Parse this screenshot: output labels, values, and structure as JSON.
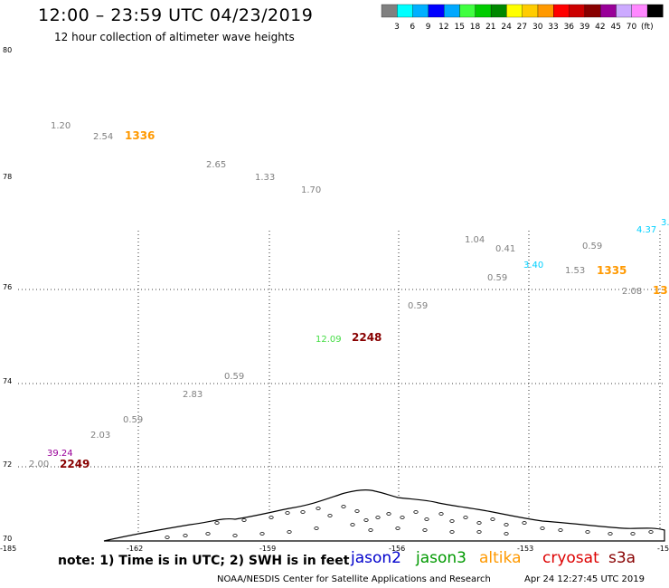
{
  "header": {
    "title": "12:00 – 23:59 UTC 04/23/2019",
    "subtitle": "12 hour collection of altimeter wave heights"
  },
  "legend": {
    "colors": [
      "#808080",
      "#00ffff",
      "#00b0ff",
      "#0000ff",
      "#00a8ff",
      "#40ff40",
      "#00cc00",
      "#008800",
      "#ffff00",
      "#ffcc00",
      "#ff9900",
      "#ff0000",
      "#cc0000",
      "#880000",
      "#990099",
      "#ccaaff",
      "#ff88ff",
      "#000000"
    ],
    "labels": [
      "3",
      "6",
      "9",
      "12",
      "15",
      "18",
      "21",
      "24",
      "27",
      "30",
      "33",
      "36",
      "39",
      "42",
      "45",
      "70",
      "(ft)"
    ]
  },
  "axes": {
    "lat_labels": [
      "80",
      "78",
      "76",
      "74",
      "72",
      "70"
    ],
    "lon_labels": [
      "-185",
      "-162",
      "-159",
      "-156",
      "-153",
      "-15"
    ]
  },
  "observations": [
    {
      "text": "1.20",
      "color": "#808080"
    },
    {
      "text": "2.54",
      "color": "#808080"
    },
    {
      "text": "1336",
      "color": "#ff9900",
      "bold": true
    },
    {
      "text": "2.65",
      "color": "#808080"
    },
    {
      "text": "1.33",
      "color": "#808080"
    },
    {
      "text": "1.70",
      "color": "#808080"
    },
    {
      "text": "1.04",
      "color": "#808080"
    },
    {
      "text": "0.41",
      "color": "#808080"
    },
    {
      "text": "0.59",
      "color": "#808080"
    },
    {
      "text": "4.37",
      "color": "#00d0ff"
    },
    {
      "text": "3.",
      "color": "#00d0ff"
    },
    {
      "text": "3.40",
      "color": "#00d0ff"
    },
    {
      "text": "0.59",
      "color": "#808080"
    },
    {
      "text": "1.53",
      "color": "#808080"
    },
    {
      "text": "1335",
      "color": "#ff9900",
      "bold": true
    },
    {
      "text": "2.08",
      "color": "#808080"
    },
    {
      "text": "13",
      "color": "#ff9900",
      "bold": true
    },
    {
      "text": "0.59",
      "color": "#808080"
    },
    {
      "text": "12.09",
      "color": "#44dd44"
    },
    {
      "text": "2248",
      "color": "#880000",
      "bold": true
    },
    {
      "text": "0.59",
      "color": "#808080"
    },
    {
      "text": "2.83",
      "color": "#808080"
    },
    {
      "text": "0.59",
      "color": "#808080"
    },
    {
      "text": "2.03",
      "color": "#808080"
    },
    {
      "text": "39.24",
      "color": "#990099"
    },
    {
      "text": "2.00",
      "color": "#808080"
    },
    {
      "text": "2249",
      "color": "#880000",
      "bold": true
    }
  ],
  "note": "note: 1) Time is in UTC; 2) SWH is in feet",
  "satellites": [
    {
      "name": "jason2",
      "color": "#0000cc"
    },
    {
      "name": "jason3",
      "color": "#009900"
    },
    {
      "name": "altika",
      "color": "#ff9900"
    },
    {
      "name": "cryosat",
      "color": "#dd0000"
    },
    {
      "name": "s3a",
      "color": "#880000"
    }
  ],
  "footer": {
    "credit": "NOAA/NESDIS Center for Satellite Applications and Research",
    "timestamp": "Apr 24 12:27:45 UTC 2019"
  }
}
